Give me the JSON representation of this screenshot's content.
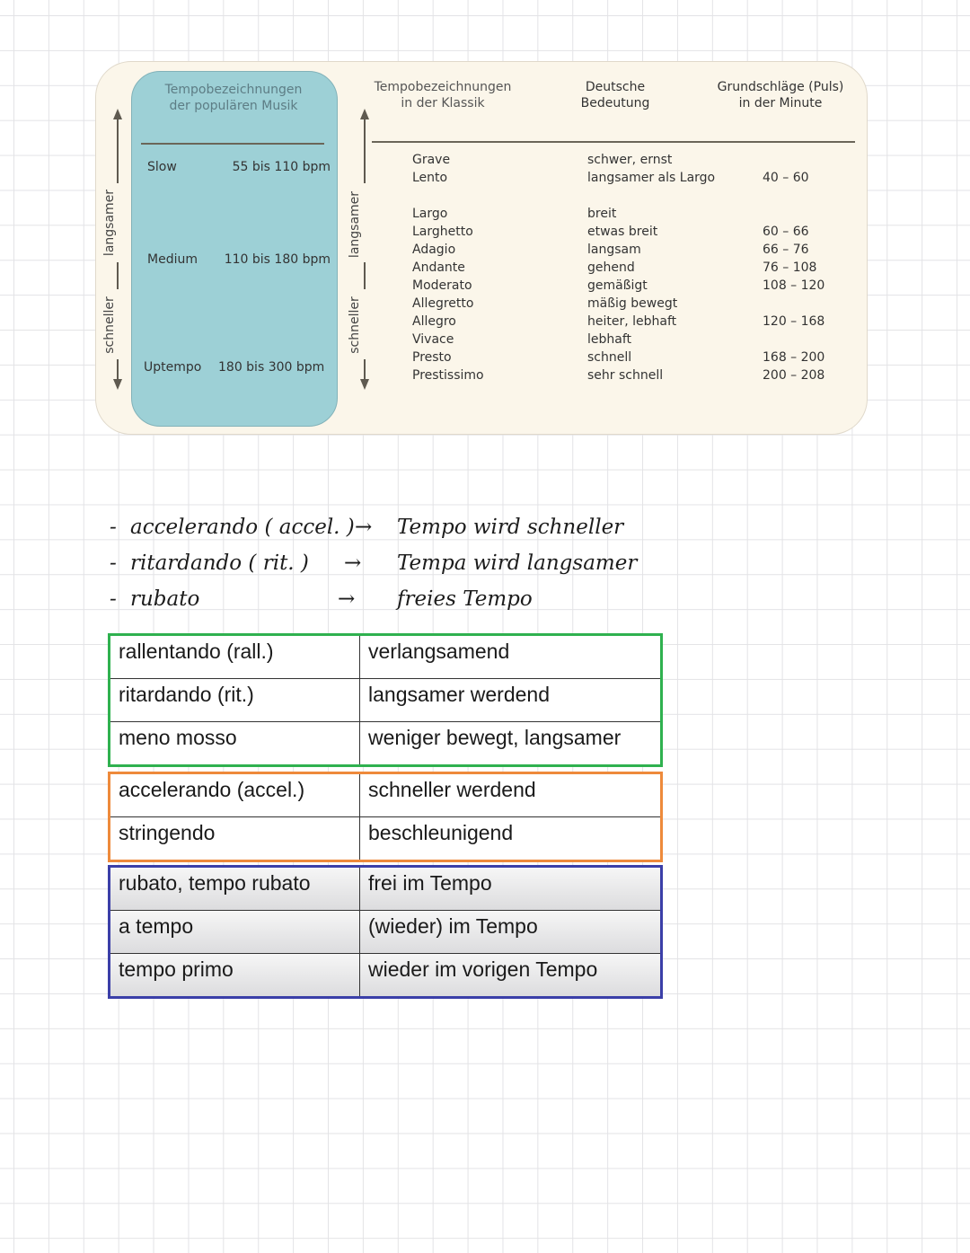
{
  "colors": {
    "green": "#2fb14f",
    "orange": "#ee8a3b",
    "blue": "#3b3fa8",
    "panel": "#9dd0d6",
    "card": "#fbf6ea"
  },
  "chart": {
    "axis_labels": {
      "slower": "langsamer",
      "faster": "schneller"
    },
    "popular": {
      "header": [
        "Tempobezeichnungen",
        "der populären Musik"
      ],
      "rows": [
        {
          "name": "Slow",
          "range": "55 bis 110 bpm"
        },
        {
          "name": "Medium",
          "range": "110 bis 180 bpm"
        },
        {
          "name": "Uptempo",
          "range": "180 bis 300 bpm"
        }
      ]
    },
    "classic": {
      "headers": {
        "term": [
          "Tempobezeichnungen",
          "in der Klassik"
        ],
        "meaning": [
          "Deutsche",
          "Bedeutung"
        ],
        "bpm": [
          "Grundschläge (Puls)",
          "in der Minute"
        ]
      },
      "rows": [
        {
          "term": "Grave",
          "meaning": "schwer, ernst",
          "bpm": ""
        },
        {
          "term": "Lento",
          "meaning": "langsamer als Largo",
          "bpm": "40 – 60"
        },
        {
          "term": "Largo",
          "meaning": "breit",
          "bpm": ""
        },
        {
          "term": "Larghetto",
          "meaning": "etwas breit",
          "bpm": "60 – 66"
        },
        {
          "term": "Adagio",
          "meaning": "langsam",
          "bpm": "66 – 76"
        },
        {
          "term": "Andante",
          "meaning": "gehend",
          "bpm": "76 – 108"
        },
        {
          "term": "Moderato",
          "meaning": "gemäßigt",
          "bpm": "108 – 120"
        },
        {
          "term": "Allegretto",
          "meaning": "mäßig bewegt",
          "bpm": ""
        },
        {
          "term": "Allegro",
          "meaning": "heiter, lebhaft",
          "bpm": "120 – 168"
        },
        {
          "term": "Vivace",
          "meaning": "lebhaft",
          "bpm": ""
        },
        {
          "term": "Presto",
          "meaning": "schnell",
          "bpm": "168 – 200"
        },
        {
          "term": "Prestissimo",
          "meaning": "sehr schnell",
          "bpm": "200 – 208"
        }
      ]
    }
  },
  "notes": [
    {
      "term": "accelerando ( accel. )",
      "meaning": "Tempo wird schneller"
    },
    {
      "term": "ritardando ( rit. )",
      "meaning": "Tempa wird langsamer"
    },
    {
      "term": "rubato",
      "meaning": "freies Tempo"
    }
  ],
  "tables": [
    {
      "color": "green",
      "rows": [
        [
          "rallentando (rall.)",
          "verlangsamend"
        ],
        [
          "ritardando (rit.)",
          "langsamer werdend"
        ],
        [
          "meno mosso",
          "weniger bewegt, langsamer"
        ]
      ]
    },
    {
      "color": "orange",
      "rows": [
        [
          "accelerando (accel.)",
          "schneller werdend"
        ],
        [
          "stringendo",
          "beschleunigend"
        ]
      ]
    },
    {
      "color": "blue",
      "rows": [
        [
          "rubato, tempo rubato",
          "frei im Tempo"
        ],
        [
          "a tempo",
          "(wieder) im Tempo"
        ],
        [
          "tempo primo",
          "wieder im vorigen Tempo"
        ]
      ]
    }
  ]
}
